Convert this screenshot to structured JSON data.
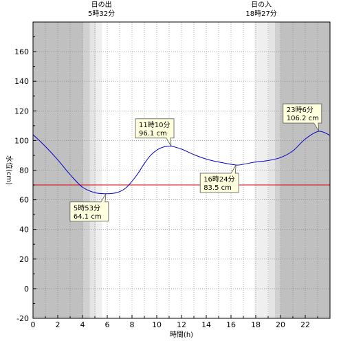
{
  "chart_data": {
    "type": "line",
    "xlabel": "時間(h)",
    "ylabel": "水位(cm)",
    "xlim": [
      0,
      24
    ],
    "ylim": [
      -20,
      180
    ],
    "x_ticks": [
      0,
      2,
      4,
      6,
      8,
      10,
      12,
      14,
      16,
      18,
      20,
      22
    ],
    "y_ticks": [
      -20,
      0,
      20,
      40,
      60,
      80,
      100,
      120,
      140,
      160
    ],
    "grid": true,
    "sun": {
      "sunrise": {
        "label": "日の出",
        "time_text": "5時32分",
        "hour": 5.533
      },
      "sunset": {
        "label": "日の入",
        "time_text": "18時27分",
        "hour": 18.45
      }
    },
    "reference_line": {
      "value": 70,
      "color": "#e00000"
    },
    "series": [
      {
        "color": "#0000cc",
        "points": [
          [
            0,
            104
          ],
          [
            1,
            96
          ],
          [
            2,
            87
          ],
          [
            3,
            77
          ],
          [
            4,
            68.5
          ],
          [
            5,
            64.8
          ],
          [
            5.883,
            64.1
          ],
          [
            6.5,
            64.4
          ],
          [
            7,
            65.5
          ],
          [
            7.5,
            68
          ],
          [
            8,
            72.5
          ],
          [
            8.5,
            78
          ],
          [
            9,
            84.5
          ],
          [
            9.5,
            90
          ],
          [
            10,
            93.5
          ],
          [
            10.5,
            95.5
          ],
          [
            11.167,
            96.1
          ],
          [
            12,
            94.2
          ],
          [
            13,
            90.5
          ],
          [
            14,
            87.5
          ],
          [
            15,
            85.5
          ],
          [
            16.4,
            83.5
          ],
          [
            17,
            84
          ],
          [
            18,
            85.5
          ],
          [
            19,
            86.5
          ],
          [
            20,
            88.5
          ],
          [
            21,
            93
          ],
          [
            22,
            101
          ],
          [
            23.1,
            106.2
          ],
          [
            24,
            103.5
          ]
        ]
      }
    ],
    "annotations": [
      {
        "time": "5時53分",
        "value": "64.1 cm",
        "x": 5.883,
        "y": 64.1,
        "placement": "below-left"
      },
      {
        "time": "11時10分",
        "value": "96.1 cm",
        "x": 11.167,
        "y": 96.1,
        "placement": "above-left"
      },
      {
        "time": "16時24分",
        "value": "83.5 cm",
        "x": 16.4,
        "y": 83.5,
        "placement": "below-left"
      },
      {
        "time": "23時6分",
        "value": "106.2 cm",
        "x": 23.1,
        "y": 106.2,
        "placement": "above-left"
      }
    ],
    "colors": {
      "night": "#c0c0c0",
      "twilight_dark": "#d0d0d0",
      "twilight_light": "#e4e4e4",
      "day": "#ffffff",
      "annotation_bg": "#ffffdd"
    }
  }
}
